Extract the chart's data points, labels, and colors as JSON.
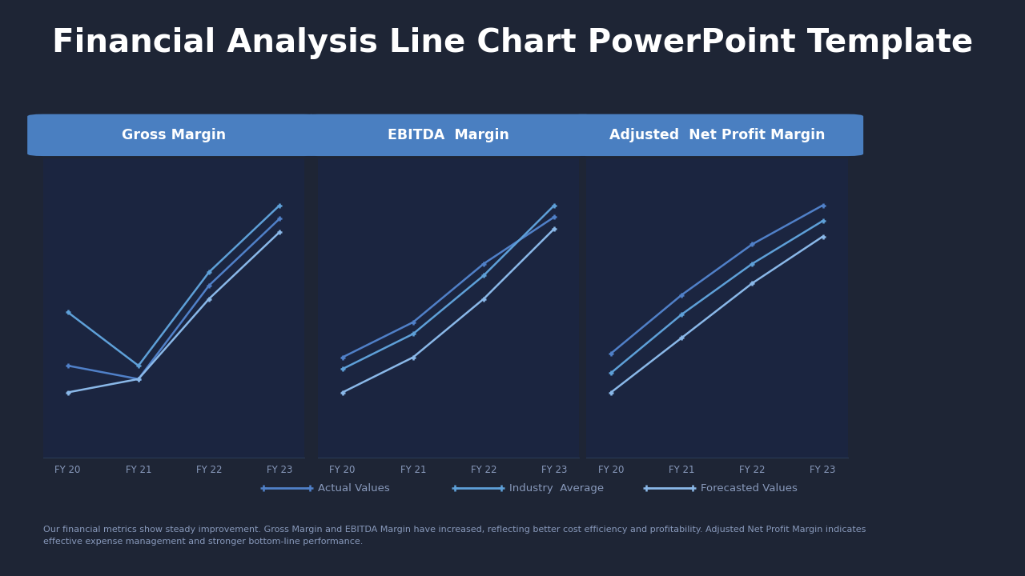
{
  "title": "Financial Analysis Line Chart PowerPoint Template",
  "background_color": "#1e2535",
  "panel_bg_color": "#1b2540",
  "header_color": "#4a7fc1",
  "panel_border_color": "#2d3d5c",
  "text_color": "#ffffff",
  "grid_color": "#2a3a55",
  "x_labels": [
    "FY 20",
    "FY 21",
    "FY 22",
    "FY 23"
  ],
  "panels": [
    {
      "title": "Gross Margin",
      "series": {
        "actual": [
          30,
          28,
          42,
          52
        ],
        "industry": [
          38,
          30,
          44,
          54
        ],
        "forecast": [
          26,
          28,
          40,
          50
        ]
      }
    },
    {
      "title": "EBITDA  Margin",
      "series": {
        "actual": [
          38,
          44,
          54,
          62
        ],
        "industry": [
          36,
          42,
          52,
          64
        ],
        "forecast": [
          32,
          38,
          48,
          60
        ]
      }
    },
    {
      "title": "Adjusted  Net Profit Margin",
      "series": {
        "actual": [
          22,
          37,
          50,
          60
        ],
        "industry": [
          17,
          32,
          45,
          56
        ],
        "forecast": [
          12,
          26,
          40,
          52
        ]
      }
    }
  ],
  "legend_labels": [
    "Actual Values",
    "Industry  Average",
    "Forecasted Values"
  ],
  "footer_text": "Our financial metrics show steady improvement. Gross Margin and EBITDA Margin have increased, reflecting better cost efficiency and profitability. Adjusted Net Profit Margin indicates\neffective expense management and stronger bottom-line performance.",
  "line_colors": [
    "#5080c8",
    "#5ea0d8",
    "#8ab8e8"
  ],
  "line_width": 1.8,
  "marker_size": 5
}
